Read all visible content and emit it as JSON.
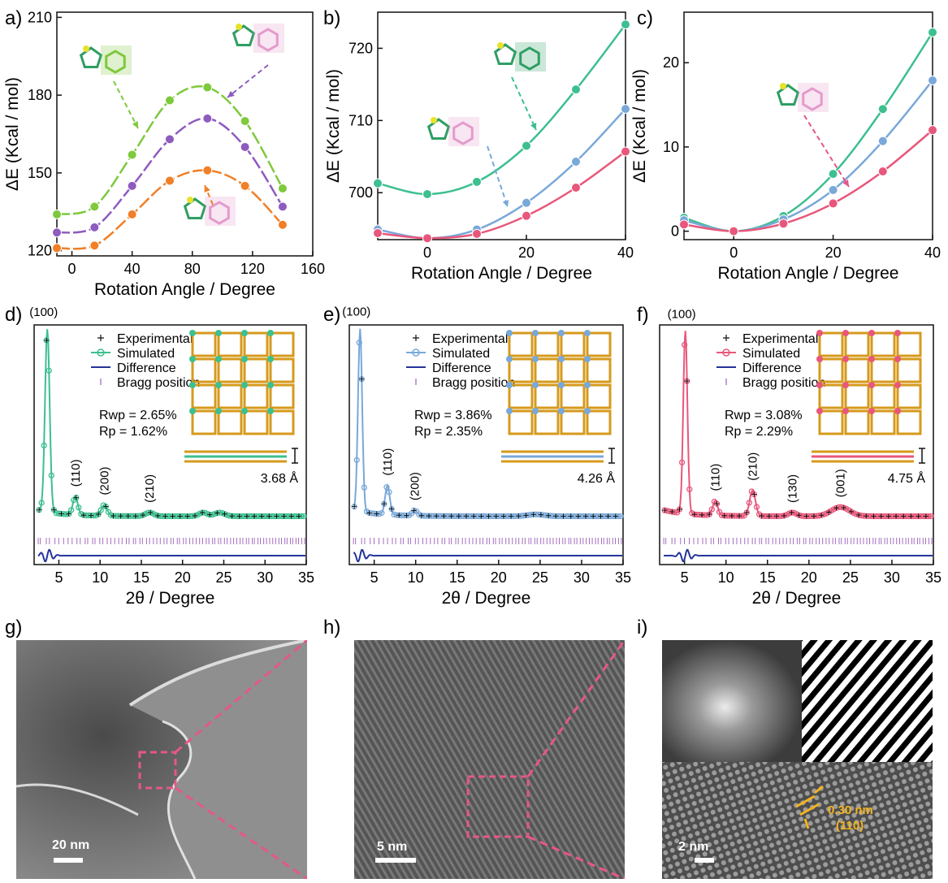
{
  "colors": {
    "green": "#3dbf8f",
    "purple": "#8e5bbf",
    "orange": "#f07f27",
    "lime": "#7ec93d",
    "blue": "#79a8d9",
    "pink": "#e8577b",
    "navy": "#24349a",
    "bragg": "#a56cc0",
    "scale_pink": "#e5578a",
    "annot_yellow": "#f2b41f"
  },
  "panels": {
    "a": {
      "label": "a)"
    },
    "b": {
      "label": "b)"
    },
    "c": {
      "label": "c)"
    },
    "d": {
      "label": "d)"
    },
    "e": {
      "label": "e)"
    },
    "f": {
      "label": "f)"
    },
    "g": {
      "label": "g)",
      "scale": "20 nm"
    },
    "h": {
      "label": "h)",
      "scale": "5 nm"
    },
    "i": {
      "label": "i)",
      "scale": "2 nm",
      "spacing": "0.30 nm",
      "plane": "(110)"
    }
  },
  "chart_data": [
    {
      "id": "a",
      "type": "line",
      "xlabel": "Rotation Angle / Degree",
      "ylabel": "ΔE (Kcal / mol)",
      "xlim": [
        -10,
        160
      ],
      "ylim": [
        118,
        212
      ],
      "xticks": [
        0,
        40,
        80,
        120,
        160
      ],
      "yticks": [
        120,
        150,
        180,
        210
      ],
      "series": [
        {
          "color": "lime",
          "x": [
            -10,
            15,
            40,
            65,
            90,
            115,
            140
          ],
          "values": [
            134,
            137,
            157,
            178,
            183,
            170,
            144
          ]
        },
        {
          "color": "purple",
          "x": [
            -10,
            15,
            40,
            65,
            90,
            115,
            140
          ],
          "values": [
            127,
            129,
            145,
            163,
            171,
            160,
            137
          ]
        },
        {
          "color": "orange",
          "x": [
            -10,
            15,
            40,
            65,
            90,
            115,
            140
          ],
          "values": [
            121,
            122,
            134,
            147,
            151,
            145,
            130
          ]
        }
      ]
    },
    {
      "id": "b",
      "type": "line",
      "xlabel": "Rotation Angle / Degree",
      "ylabel": "ΔE (Kcal / mol)",
      "xlim": [
        -10,
        40
      ],
      "ylim": [
        693.5,
        725
      ],
      "xticks": [
        0,
        20,
        40
      ],
      "yticks": [
        700,
        710,
        720
      ],
      "series": [
        {
          "color": "green",
          "x": [
            -10,
            0,
            10,
            20,
            30,
            40
          ],
          "values": [
            701.3,
            699.8,
            701.5,
            706.5,
            714.3,
            723.3
          ]
        },
        {
          "color": "blue",
          "x": [
            -10,
            0,
            10,
            20,
            30,
            40
          ],
          "values": [
            694.9,
            693.7,
            694.9,
            698.6,
            704.3,
            711.6
          ]
        },
        {
          "color": "pink",
          "x": [
            -10,
            0,
            10,
            20,
            30,
            40
          ],
          "values": [
            694.4,
            693.7,
            694.3,
            696.8,
            700.7,
            705.7
          ]
        }
      ]
    },
    {
      "id": "c",
      "type": "line",
      "xlabel": "Rotation Angle / Degree",
      "ylabel": "ΔE (Kcal / mol)",
      "xlim": [
        -10,
        40
      ],
      "ylim": [
        -1,
        26
      ],
      "xticks": [
        0,
        20,
        40
      ],
      "yticks": [
        0,
        10,
        20
      ],
      "series": [
        {
          "color": "green",
          "x": [
            -10,
            0,
            10,
            20,
            30,
            40
          ],
          "values": [
            1.6,
            0,
            1.8,
            6.8,
            14.5,
            23.6
          ]
        },
        {
          "color": "blue",
          "x": [
            -10,
            0,
            10,
            20,
            30,
            40
          ],
          "values": [
            1.3,
            0,
            1.4,
            4.9,
            10.7,
            17.9
          ]
        },
        {
          "color": "pink",
          "x": [
            -10,
            0,
            10,
            20,
            30,
            40
          ],
          "values": [
            0.8,
            0,
            0.9,
            3.3,
            7.1,
            12.0
          ]
        }
      ]
    },
    {
      "id": "d",
      "type": "line",
      "xlabel": "2θ / Degree",
      "xlim": [
        2,
        35
      ],
      "xticks": [
        5,
        10,
        15,
        20,
        25,
        30,
        35
      ],
      "color": "green",
      "legend": [
        "Experimental",
        "Simulated",
        "Difference",
        "Bragg position"
      ],
      "rwp": "Rwp = 2.65%",
      "rp": "Rp = 1.62%",
      "layer": "3.68 Å",
      "peaks": [
        {
          "x": 3.6,
          "h": 1.0,
          "w": 0.28,
          "label": "(100)"
        },
        {
          "x": 7.0,
          "h": 0.1,
          "w": 0.3,
          "label": "(110)"
        },
        {
          "x": 10.5,
          "h": 0.06,
          "w": 0.35,
          "label": "(200)"
        },
        {
          "x": 16.0,
          "h": 0.02,
          "w": 0.5,
          "label": "(210)"
        },
        {
          "x": 22.5,
          "h": 0.02,
          "w": 0.5,
          "label": ""
        },
        {
          "x": 24.5,
          "h": 0.02,
          "w": 0.6,
          "label": ""
        }
      ]
    },
    {
      "id": "e",
      "type": "line",
      "xlabel": "2θ / Degree",
      "xlim": [
        2,
        35
      ],
      "xticks": [
        5,
        10,
        15,
        20,
        25,
        30,
        35
      ],
      "color": "blue",
      "legend": [
        "Experimental",
        "Simulated",
        "Difference",
        "Bragg position"
      ],
      "rwp": "Rwp = 3.86%",
      "rp": "Rp = 2.35%",
      "layer": "4.26 Å",
      "peaks": [
        {
          "x": 3.3,
          "h": 1.0,
          "w": 0.25,
          "label": "(100)"
        },
        {
          "x": 6.6,
          "h": 0.16,
          "w": 0.28,
          "label": "(110)"
        },
        {
          "x": 9.9,
          "h": 0.03,
          "w": 0.3,
          "label": "(200)"
        },
        {
          "x": 24.5,
          "h": 0.01,
          "w": 1.0,
          "label": ""
        }
      ]
    },
    {
      "id": "f",
      "type": "line",
      "xlabel": "2θ / Degree",
      "xlim": [
        2,
        35
      ],
      "xticks": [
        5,
        10,
        15,
        20,
        25,
        30,
        35
      ],
      "color": "pink",
      "legend": [
        "Experimental",
        "Simulated",
        "Difference",
        "Bragg position"
      ],
      "rwp": "Rwp = 3.08%",
      "rp": "Rp = 2.29%",
      "layer": "4.75 Å",
      "peaks": [
        {
          "x": 5.1,
          "h": 1.0,
          "w": 0.25,
          "label": "(100)"
        },
        {
          "x": 8.7,
          "h": 0.08,
          "w": 0.3,
          "label": "(110)"
        },
        {
          "x": 13.2,
          "h": 0.14,
          "w": 0.35,
          "label": "(210)"
        },
        {
          "x": 18.0,
          "h": 0.02,
          "w": 0.5,
          "label": "(130)"
        },
        {
          "x": 23.8,
          "h": 0.05,
          "w": 1.1,
          "label": "(001)"
        }
      ]
    }
  ]
}
